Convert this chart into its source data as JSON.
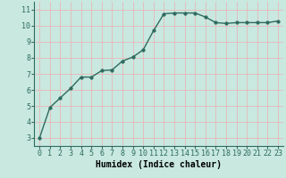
{
  "x": [
    0,
    1,
    2,
    3,
    4,
    5,
    6,
    7,
    8,
    9,
    10,
    11,
    12,
    13,
    14,
    15,
    16,
    17,
    18,
    19,
    20,
    21,
    22,
    23
  ],
  "y": [
    3.0,
    4.9,
    5.5,
    6.1,
    6.8,
    6.8,
    7.2,
    7.25,
    7.8,
    8.05,
    8.5,
    9.7,
    10.75,
    10.8,
    10.8,
    10.8,
    10.55,
    10.2,
    10.15,
    10.2,
    10.2,
    10.2,
    10.2,
    10.3
  ],
  "line_color": "#2e6b5e",
  "marker_color": "#2e6b5e",
  "bg_color": "#c8e8e0",
  "grid_color": "#e8b8b8",
  "xlabel": "Humidex (Indice chaleur)",
  "xlabel_fontsize": 7,
  "xlim": [
    -0.5,
    23.5
  ],
  "ylim": [
    2.5,
    11.5
  ],
  "yticks": [
    3,
    4,
    5,
    6,
    7,
    8,
    9,
    10,
    11
  ],
  "xticks": [
    0,
    1,
    2,
    3,
    4,
    5,
    6,
    7,
    8,
    9,
    10,
    11,
    12,
    13,
    14,
    15,
    16,
    17,
    18,
    19,
    20,
    21,
    22,
    23
  ],
  "tick_fontsize": 6,
  "line_width": 1.0,
  "marker_size": 2.5
}
